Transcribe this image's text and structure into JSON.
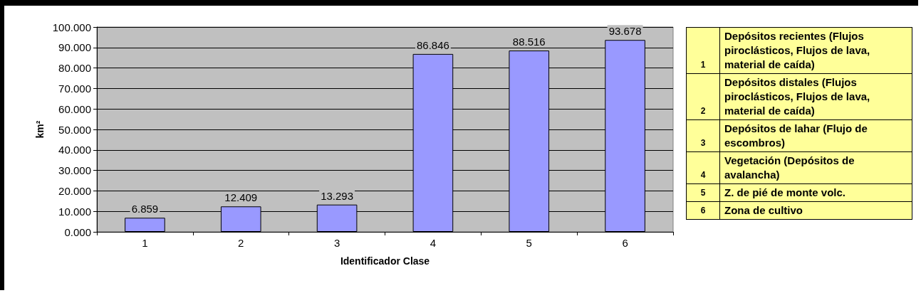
{
  "chart_data": {
    "type": "bar",
    "xlabel": "Identificador Clase",
    "ylabel": "km²",
    "categories": [
      "1",
      "2",
      "3",
      "4",
      "5",
      "6"
    ],
    "values": [
      6.859,
      12.409,
      13.293,
      86.846,
      88.516,
      93.678
    ],
    "color": "#9999ff",
    "data_labels": true,
    "grid": "y",
    "ylim": [
      0,
      100
    ],
    "yticks": [
      {
        "value": 0,
        "label": "0.000"
      },
      {
        "value": 10,
        "label": "10.000"
      },
      {
        "value": 20,
        "label": "20.000"
      },
      {
        "value": 30,
        "label": "30.000"
      },
      {
        "value": 40,
        "label": "40.000"
      },
      {
        "value": 50,
        "label": "50.000"
      },
      {
        "value": 60,
        "label": "60.000"
      },
      {
        "value": 70,
        "label": "70.000"
      },
      {
        "value": 80,
        "label": "80.000"
      },
      {
        "value": 90,
        "label": "90.000"
      },
      {
        "value": 100,
        "label": "100.000"
      }
    ],
    "annotations": [
      "Depósitos recientes (Flujos piroclásticos, Flujos de lava, material de caída)",
      "Depósitos distales (Flujos piroclásticos, Flujos de lava, material de caída)",
      "Depósitos de lahar (Flujo de escombros)",
      "Vegetación (Depósitos de avalancha)",
      "Z. de pié de monte  volc.",
      "Zona de cultivo"
    ]
  }
}
